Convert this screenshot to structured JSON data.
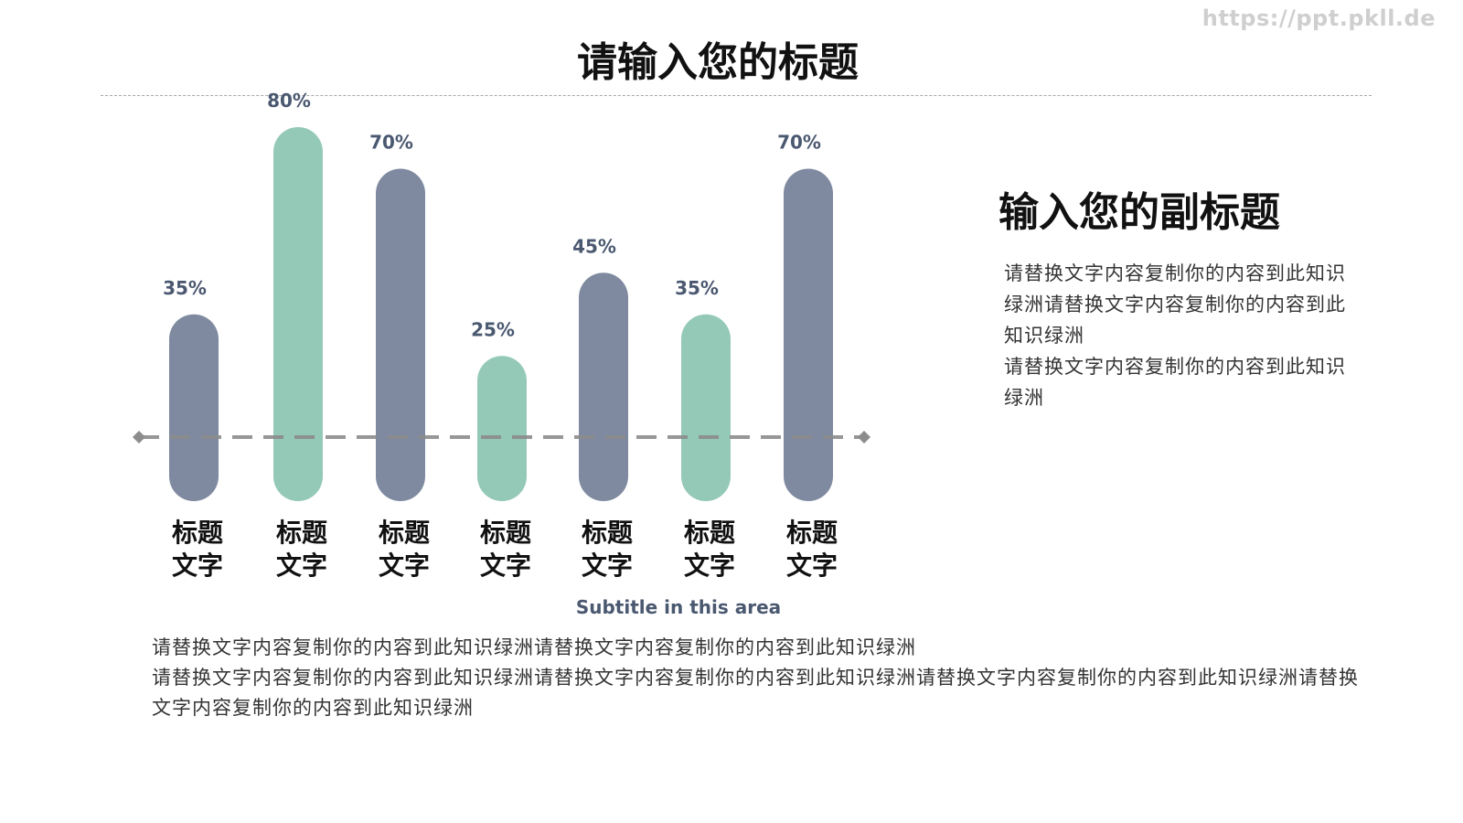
{
  "watermark": "https://ppt.pkll.de",
  "title": "请输入您的标题",
  "subtitle_right": "输入您的副标题",
  "paragraph_right": [
    "请替换文字内容复制你的内容到此知识绿洲请替换文字内容复制你的内容到此知识绿洲",
    "请替换文字内容复制你的内容到此知识绿洲"
  ],
  "chart_caption": "Subtitle in this area",
  "paragraph_bottom": [
    "请替换文字内容复制你的内容到此知识绿洲请替换文字内容复制你的内容到此知识绿洲",
    "请替换文字内容复制你的内容到此知识绿洲请替换文字内容复制你的内容到此知识绿洲请替换文字内容复制你的内容到此知识绿洲请替换文字内容复制你的内容到此知识绿洲"
  ],
  "colors": {
    "slate": "#7f8aa0",
    "mint": "#94c9b8",
    "label": "#4a5870",
    "dash": "#8c8c8c"
  },
  "chart_data": {
    "type": "bar",
    "categories": [
      "标题\n文字",
      "标题\n文字",
      "标题\n文字",
      "标题\n文字",
      "标题\n文字",
      "标题\n文字",
      "标题\n文字"
    ],
    "values": [
      35,
      80,
      70,
      25,
      45,
      35,
      70
    ],
    "value_labels": [
      "35%",
      "80%",
      "70%",
      "25%",
      "45%",
      "35%",
      "70%"
    ],
    "bar_colors": [
      "slate",
      "mint",
      "slate",
      "mint",
      "slate",
      "mint",
      "slate"
    ],
    "ylim": [
      0,
      100
    ],
    "grid": false,
    "legend": "none"
  }
}
